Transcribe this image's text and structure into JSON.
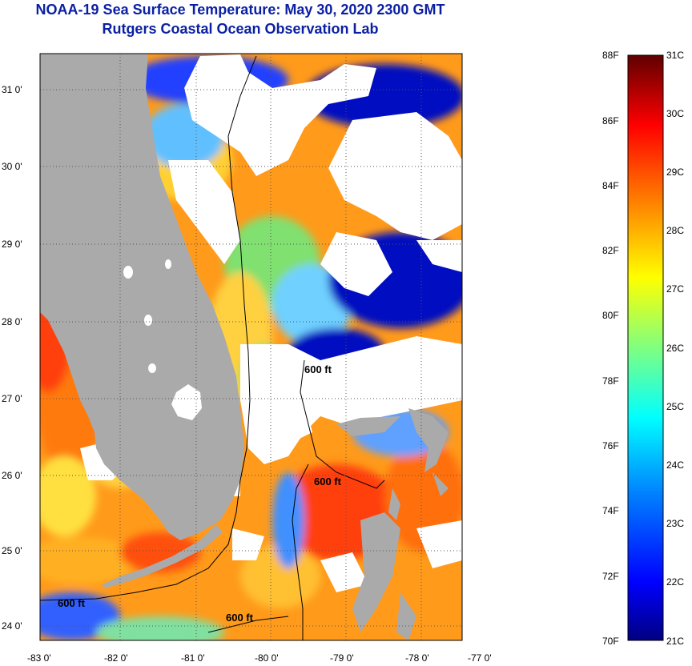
{
  "header": {
    "title": "NOAA-19 Sea Surface Temperature:  May 30, 2020 2300 GMT",
    "subtitle": "Rutgers Coastal Ocean Observation Lab"
  },
  "map": {
    "lon_labels": [
      "-83 0'",
      "-82 0'",
      "-81 0'",
      "-80 0'",
      "-79 0'",
      "-78 0'",
      "-77 0'"
    ],
    "lat_labels": [
      "31 0'",
      "30 0'",
      "29 0'",
      "28 0'",
      "27 0'",
      "26 0'",
      "25 0'",
      "24 0'"
    ],
    "contour_labels": [
      "600 ft",
      "600 ft",
      "600 ft",
      "600 ft"
    ],
    "colors": {
      "land": "#aaaaaa",
      "cloud": "#ffffff"
    }
  },
  "colorbar": {
    "fahrenheit_labels": [
      "88F",
      "86F",
      "84F",
      "82F",
      "80F",
      "78F",
      "76F",
      "74F",
      "72F",
      "70F"
    ],
    "celsius_labels": [
      "31C",
      "30C",
      "29C",
      "28C",
      "27C",
      "26C",
      "25C",
      "24C",
      "23C",
      "22C",
      "21C"
    ],
    "range_f": [
      70,
      88
    ],
    "range_c": [
      21,
      31
    ],
    "gradient": [
      "#000080",
      "#0000ff",
      "#0080ff",
      "#00ffff",
      "#80ff80",
      "#ffff00",
      "#ff8000",
      "#ff0000",
      "#800000",
      "#600000"
    ]
  }
}
